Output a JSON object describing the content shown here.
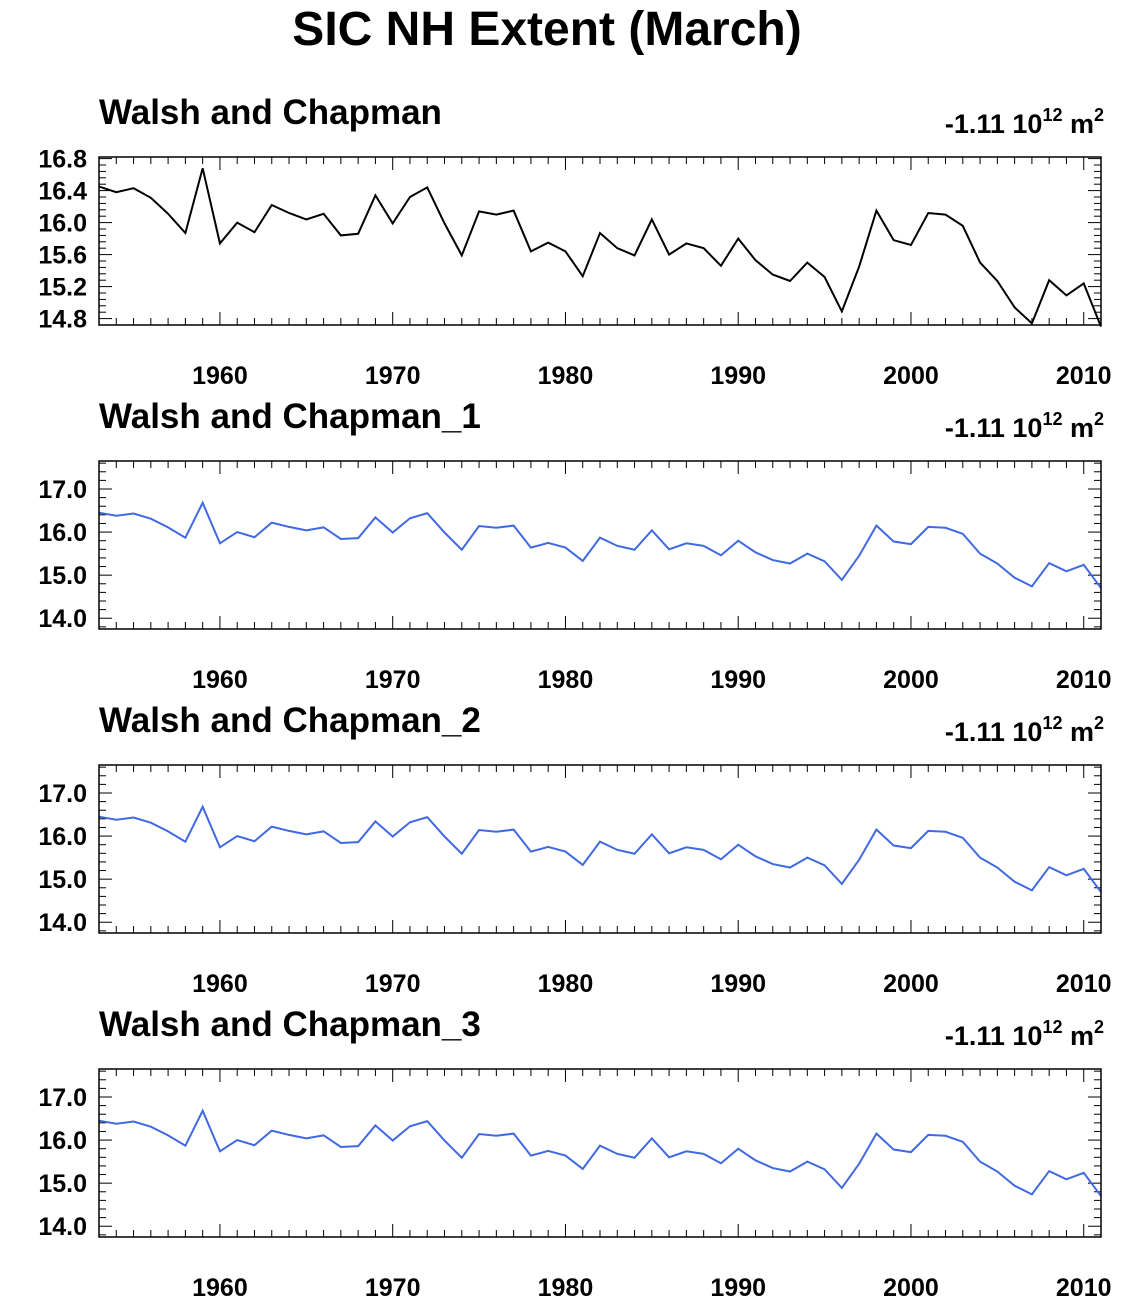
{
  "figure": {
    "title": "SIC NH Extent (March)"
  },
  "chart_data": [
    {
      "type": "line",
      "title": "Walsh and Chapman",
      "trend_value": "-1.11",
      "trend_unit_base": "10",
      "trend_unit_exp": "12",
      "trend_unit_suffix": "m",
      "trend_unit_suffix_exp": "2",
      "line_color": "#000000",
      "xlim": [
        1953,
        2011
      ],
      "ylim": [
        14.72,
        16.82
      ],
      "xticks": [
        1960,
        1970,
        1980,
        1990,
        2000,
        2010
      ],
      "xtick_labels": [
        "1960",
        "1970",
        "1980",
        "1990",
        "2000",
        "2010"
      ],
      "yticks": [
        14.8,
        15.2,
        15.6,
        16.0,
        16.4,
        16.8
      ],
      "ytick_labels": [
        "14.8",
        "15.2",
        "15.6",
        "16.0",
        "16.4",
        "16.8"
      ],
      "series": [
        {
          "x": [
            1953,
            1954,
            1955,
            1956,
            1957,
            1958,
            1959,
            1960,
            1961,
            1962,
            1963,
            1964,
            1965,
            1966,
            1967,
            1968,
            1969,
            1970,
            1971,
            1972,
            1973,
            1974,
            1975,
            1976,
            1977,
            1978,
            1979,
            1980,
            1981,
            1982,
            1983,
            1984,
            1985,
            1986,
            1987,
            1988,
            1989,
            1990,
            1991,
            1992,
            1993,
            1994,
            1995,
            1996,
            1997,
            1998,
            1999,
            2000,
            2001,
            2002,
            2003,
            2004,
            2005,
            2006,
            2007,
            2008,
            2009,
            2010,
            2011
          ],
          "values": [
            16.45,
            16.38,
            16.43,
            16.31,
            16.11,
            15.87,
            16.68,
            15.74,
            16.0,
            15.88,
            16.22,
            16.12,
            16.04,
            16.11,
            15.84,
            15.86,
            16.34,
            15.99,
            16.32,
            16.44,
            15.99,
            15.59,
            16.14,
            16.1,
            16.15,
            15.64,
            15.75,
            15.64,
            15.33,
            15.87,
            15.68,
            15.59,
            16.04,
            15.6,
            15.74,
            15.68,
            15.46,
            15.8,
            15.53,
            15.35,
            15.27,
            15.5,
            15.32,
            14.89,
            15.45,
            16.15,
            15.78,
            15.72,
            16.12,
            16.1,
            15.96,
            15.5,
            15.27,
            14.94,
            14.74,
            15.28,
            15.09,
            15.24,
            14.7
          ]
        }
      ]
    },
    {
      "type": "line",
      "title": "Walsh and Chapman_1",
      "trend_value": "-1.11",
      "trend_unit_base": "10",
      "trend_unit_exp": "12",
      "trend_unit_suffix": "m",
      "trend_unit_suffix_exp": "2",
      "line_color": "#4169e1",
      "xlim": [
        1953,
        2011
      ],
      "ylim": [
        13.75,
        17.65
      ],
      "xticks": [
        1960,
        1970,
        1980,
        1990,
        2000,
        2010
      ],
      "xtick_labels": [
        "1960",
        "1970",
        "1980",
        "1990",
        "2000",
        "2010"
      ],
      "yticks": [
        14.0,
        15.0,
        16.0,
        17.0
      ],
      "ytick_labels": [
        "14.0",
        "15.0",
        "16.0",
        "17.0"
      ],
      "series": [
        {
          "x": [
            1953,
            1954,
            1955,
            1956,
            1957,
            1958,
            1959,
            1960,
            1961,
            1962,
            1963,
            1964,
            1965,
            1966,
            1967,
            1968,
            1969,
            1970,
            1971,
            1972,
            1973,
            1974,
            1975,
            1976,
            1977,
            1978,
            1979,
            1980,
            1981,
            1982,
            1983,
            1984,
            1985,
            1986,
            1987,
            1988,
            1989,
            1990,
            1991,
            1992,
            1993,
            1994,
            1995,
            1996,
            1997,
            1998,
            1999,
            2000,
            2001,
            2002,
            2003,
            2004,
            2005,
            2006,
            2007,
            2008,
            2009,
            2010,
            2011
          ],
          "values": [
            16.45,
            16.38,
            16.43,
            16.31,
            16.11,
            15.87,
            16.68,
            15.74,
            16.0,
            15.88,
            16.22,
            16.12,
            16.04,
            16.11,
            15.84,
            15.86,
            16.34,
            15.99,
            16.32,
            16.44,
            15.99,
            15.59,
            16.14,
            16.1,
            16.15,
            15.64,
            15.75,
            15.64,
            15.33,
            15.87,
            15.68,
            15.59,
            16.04,
            15.6,
            15.74,
            15.68,
            15.46,
            15.8,
            15.53,
            15.35,
            15.27,
            15.5,
            15.32,
            14.89,
            15.45,
            16.15,
            15.78,
            15.72,
            16.12,
            16.1,
            15.96,
            15.5,
            15.27,
            14.94,
            14.74,
            15.28,
            15.09,
            15.24,
            14.7
          ]
        }
      ]
    },
    {
      "type": "line",
      "title": "Walsh and Chapman_2",
      "trend_value": "-1.11",
      "trend_unit_base": "10",
      "trend_unit_exp": "12",
      "trend_unit_suffix": "m",
      "trend_unit_suffix_exp": "2",
      "line_color": "#4169e1",
      "xlim": [
        1953,
        2011
      ],
      "ylim": [
        13.75,
        17.65
      ],
      "xticks": [
        1960,
        1970,
        1980,
        1990,
        2000,
        2010
      ],
      "xtick_labels": [
        "1960",
        "1970",
        "1980",
        "1990",
        "2000",
        "2010"
      ],
      "yticks": [
        14.0,
        15.0,
        16.0,
        17.0
      ],
      "ytick_labels": [
        "14.0",
        "15.0",
        "16.0",
        "17.0"
      ],
      "series": [
        {
          "x": [
            1953,
            1954,
            1955,
            1956,
            1957,
            1958,
            1959,
            1960,
            1961,
            1962,
            1963,
            1964,
            1965,
            1966,
            1967,
            1968,
            1969,
            1970,
            1971,
            1972,
            1973,
            1974,
            1975,
            1976,
            1977,
            1978,
            1979,
            1980,
            1981,
            1982,
            1983,
            1984,
            1985,
            1986,
            1987,
            1988,
            1989,
            1990,
            1991,
            1992,
            1993,
            1994,
            1995,
            1996,
            1997,
            1998,
            1999,
            2000,
            2001,
            2002,
            2003,
            2004,
            2005,
            2006,
            2007,
            2008,
            2009,
            2010,
            2011
          ],
          "values": [
            16.45,
            16.38,
            16.43,
            16.31,
            16.11,
            15.87,
            16.68,
            15.74,
            16.0,
            15.88,
            16.22,
            16.12,
            16.04,
            16.11,
            15.84,
            15.86,
            16.34,
            15.99,
            16.32,
            16.44,
            15.99,
            15.59,
            16.14,
            16.1,
            16.15,
            15.64,
            15.75,
            15.64,
            15.33,
            15.87,
            15.68,
            15.59,
            16.04,
            15.6,
            15.74,
            15.68,
            15.46,
            15.8,
            15.53,
            15.35,
            15.27,
            15.5,
            15.32,
            14.89,
            15.45,
            16.15,
            15.78,
            15.72,
            16.12,
            16.1,
            15.96,
            15.5,
            15.27,
            14.94,
            14.74,
            15.28,
            15.09,
            15.24,
            14.7
          ]
        }
      ]
    },
    {
      "type": "line",
      "title": "Walsh and Chapman_3",
      "trend_value": "-1.11",
      "trend_unit_base": "10",
      "trend_unit_exp": "12",
      "trend_unit_suffix": "m",
      "trend_unit_suffix_exp": "2",
      "line_color": "#4169e1",
      "xlim": [
        1953,
        2011
      ],
      "ylim": [
        13.75,
        17.65
      ],
      "xticks": [
        1960,
        1970,
        1980,
        1990,
        2000,
        2010
      ],
      "xtick_labels": [
        "1960",
        "1970",
        "1980",
        "1990",
        "2000",
        "2010"
      ],
      "yticks": [
        14.0,
        15.0,
        16.0,
        17.0
      ],
      "ytick_labels": [
        "14.0",
        "15.0",
        "16.0",
        "17.0"
      ],
      "series": [
        {
          "x": [
            1953,
            1954,
            1955,
            1956,
            1957,
            1958,
            1959,
            1960,
            1961,
            1962,
            1963,
            1964,
            1965,
            1966,
            1967,
            1968,
            1969,
            1970,
            1971,
            1972,
            1973,
            1974,
            1975,
            1976,
            1977,
            1978,
            1979,
            1980,
            1981,
            1982,
            1983,
            1984,
            1985,
            1986,
            1987,
            1988,
            1989,
            1990,
            1991,
            1992,
            1993,
            1994,
            1995,
            1996,
            1997,
            1998,
            1999,
            2000,
            2001,
            2002,
            2003,
            2004,
            2005,
            2006,
            2007,
            2008,
            2009,
            2010,
            2011
          ],
          "values": [
            16.45,
            16.38,
            16.43,
            16.31,
            16.11,
            15.87,
            16.68,
            15.74,
            16.0,
            15.88,
            16.22,
            16.12,
            16.04,
            16.11,
            15.84,
            15.86,
            16.34,
            15.99,
            16.32,
            16.44,
            15.99,
            15.59,
            16.14,
            16.1,
            16.15,
            15.64,
            15.75,
            15.64,
            15.33,
            15.87,
            15.68,
            15.59,
            16.04,
            15.6,
            15.74,
            15.68,
            15.46,
            15.8,
            15.53,
            15.35,
            15.27,
            15.5,
            15.32,
            14.89,
            15.45,
            16.15,
            15.78,
            15.72,
            16.12,
            16.1,
            15.96,
            15.5,
            15.27,
            14.94,
            14.74,
            15.28,
            15.09,
            15.24,
            14.7
          ]
        }
      ]
    }
  ]
}
